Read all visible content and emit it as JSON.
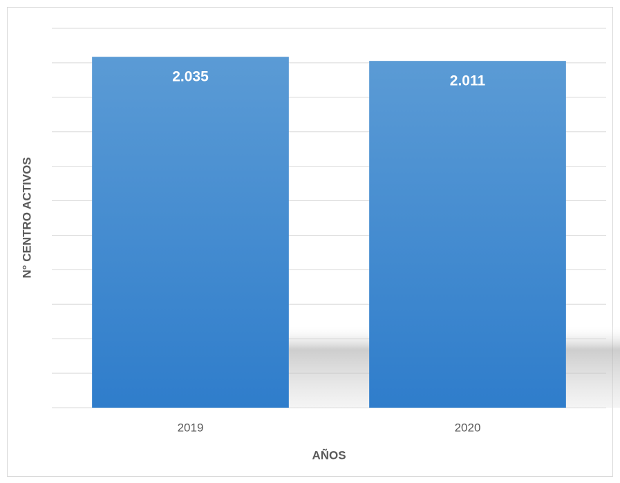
{
  "chart_data": {
    "type": "bar",
    "categories": [
      "2019",
      "2020"
    ],
    "values": [
      2035,
      2011
    ],
    "value_labels": [
      "2.035",
      "2.011"
    ],
    "x_label": "AÑOS",
    "y_label": "N° CENTRO ACTIVOS",
    "color": "#4a90d6",
    "ylim": [
      0,
      2200
    ],
    "yticks": [
      0,
      200,
      400,
      600,
      800,
      1000,
      1200,
      1400,
      1600,
      1800,
      2000,
      2200
    ],
    "grid": true
  }
}
